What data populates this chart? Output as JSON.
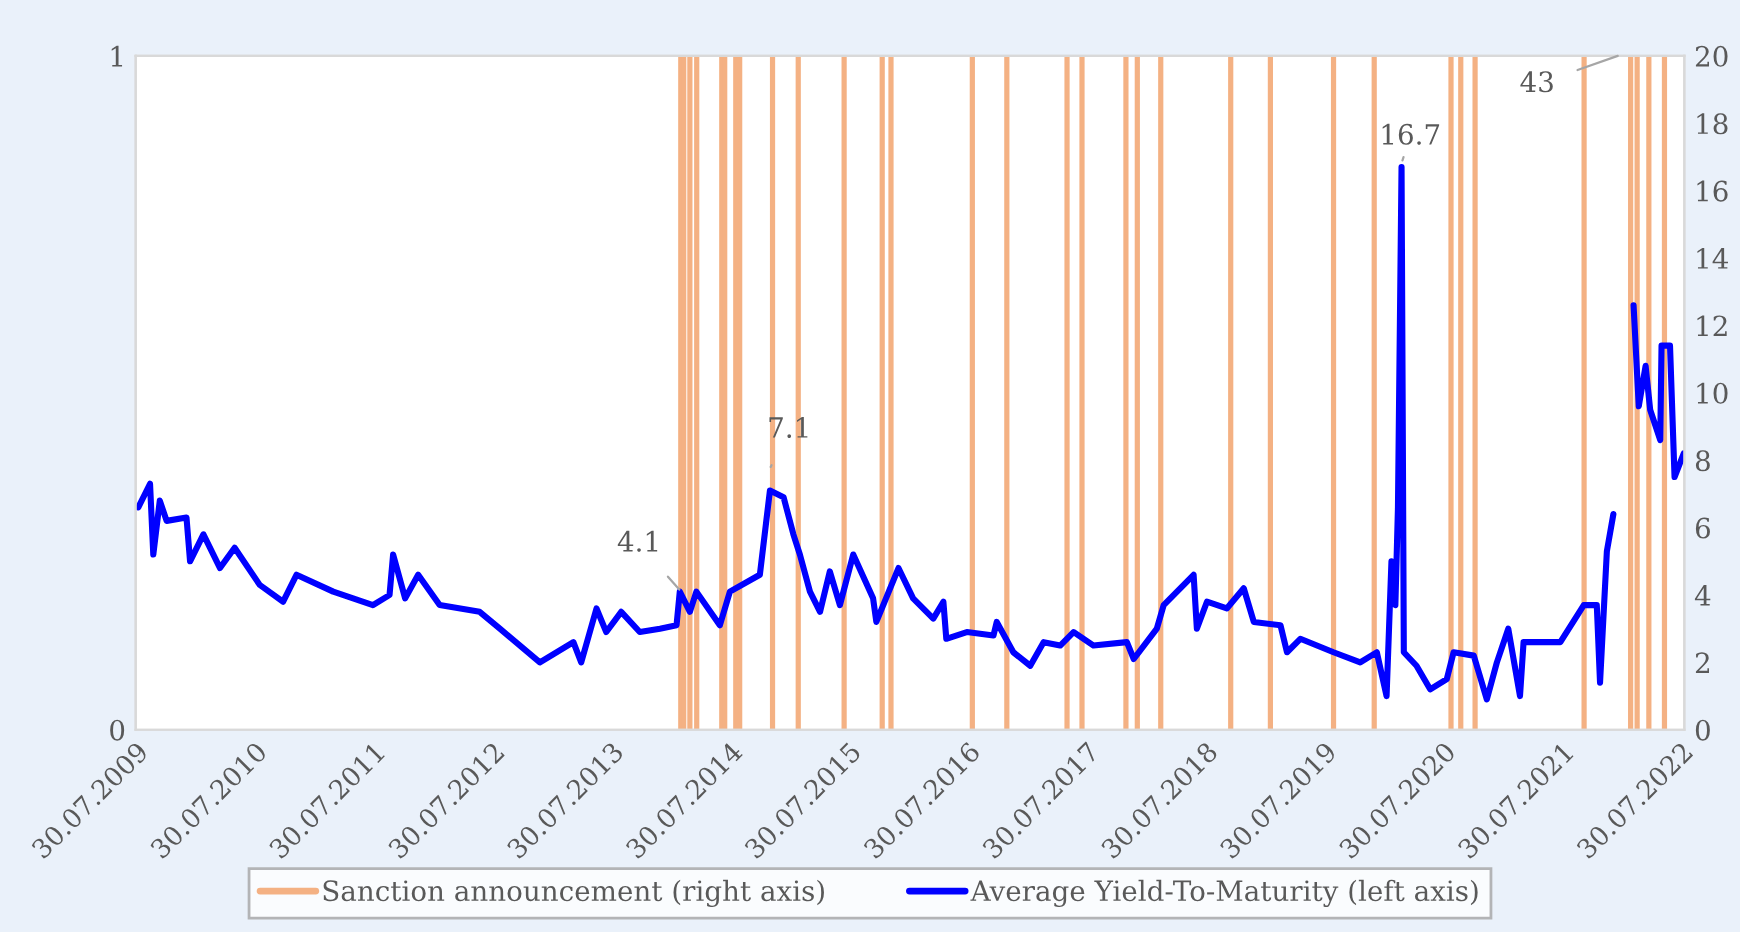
{
  "chart_data": {
    "type": "line",
    "series": [
      {
        "name": "Sanction announcement (right axis)",
        "type": "bar",
        "color": "#f4b183",
        "x": [
          "2014-03-01",
          "2014-03-10",
          "2014-03-29",
          "2014-04-19",
          "2014-07-05",
          "2014-07-14",
          "2014-08-17",
          "2014-08-29",
          "2014-12-08",
          "2015-02-25",
          "2015-07-16",
          "2015-11-10",
          "2015-12-07",
          "2016-08-13",
          "2016-11-27",
          "2017-05-31",
          "2017-07-16",
          "2017-11-28",
          "2018-01-02",
          "2018-03-15",
          "2018-10-16",
          "2019-02-15",
          "2019-08-28",
          "2019-12-31",
          "2020-08-23",
          "2020-09-22",
          "2020-11-05",
          "2021-10-06",
          "2022-02-26",
          "2022-03-18",
          "2022-04-23",
          "2022-06-10"
        ],
        "values": [
          1,
          1,
          1,
          1,
          1,
          1,
          1,
          1,
          1,
          1,
          1,
          1,
          1,
          1,
          1,
          1,
          1,
          1,
          1,
          1,
          1,
          1,
          1,
          1,
          1,
          1,
          1,
          1,
          1,
          1,
          1,
          1
        ]
      },
      {
        "name": "Average Yield-To-Maturity (left axis)",
        "axis": "y2",
        "color": "#0000ff",
        "x": [
          "2009-08-07",
          "2009-09-12",
          "2009-09-22",
          "2009-10-12",
          "2009-11-02",
          "2010-01-02",
          "2010-01-13",
          "2010-02-23",
          "2010-04-15",
          "2010-05-30",
          "2010-08-15",
          "2010-10-26",
          "2010-12-06",
          "2011-03-29",
          "2011-07-29",
          "2011-09-18",
          "2011-09-29",
          "2011-11-05",
          "2011-12-15",
          "2012-02-19",
          "2012-06-21",
          "2012-08-22",
          "2012-12-23",
          "2013-04-05",
          "2013-04-29",
          "2013-06-15",
          "2013-07-15",
          "2013-08-30",
          "2013-10-26",
          "2013-12-27",
          "2014-02-16",
          "2014-02-26",
          "2014-03-29",
          "2014-04-18",
          "2014-06-29",
          "2014-07-30",
          "2014-10-30",
          "2014-11-30",
          "2015-01-11",
          "2015-02-10",
          "2015-03-02",
          "2015-04-02",
          "2015-05-03",
          "2015-06-02",
          "2015-07-03",
          "2015-08-13",
          "2015-10-13",
          "2015-10-23",
          "2015-12-30",
          "2016-02-13",
          "2016-04-15",
          "2016-05-16",
          "2016-05-25",
          "2016-07-27",
          "2016-10-17",
          "2016-10-27",
          "2016-12-17",
          "2017-02-07",
          "2017-03-20",
          "2017-05-10",
          "2017-06-20",
          "2017-08-20",
          "2017-12-01",
          "2017-12-22",
          "2018-03-03",
          "2018-03-24",
          "2018-06-24",
          "2018-07-04",
          "2018-08-04",
          "2018-10-04",
          "2018-11-25",
          "2018-12-26",
          "2019-03-18",
          "2019-04-07",
          "2019-05-18",
          "2019-08-28",
          "2019-11-18",
          "2020-01-08",
          "2020-02-07",
          "2020-02-22",
          "2020-03-05",
          "2020-03-13",
          "2020-03-24",
          "2020-03-31",
          "2020-05-09",
          "2020-06-20",
          "2020-08-10",
          "2020-08-31",
          "2020-11-01",
          "2020-12-11",
          "2021-01-11",
          "2021-02-15",
          "2021-03-23",
          "2021-04-03",
          "2021-07-25",
          "2021-10-05",
          "2021-11-14",
          "2021-11-24",
          "2021-12-15",
          "2022-01-04",
          "2022-01-20",
          "2022-03-07",
          "2022-03-23",
          "2022-04-13",
          "2022-04-27",
          "2022-05-28",
          "2022-06-01",
          "2022-06-27",
          "2022-07-11",
          "2022-08-08"
        ],
        "values": [
          6.6,
          7.3,
          5.2,
          6.8,
          6.2,
          6.3,
          5.0,
          5.8,
          4.8,
          5.4,
          4.3,
          3.8,
          4.6,
          4.1,
          3.7,
          4.0,
          5.2,
          3.9,
          4.6,
          3.7,
          3.5,
          3.0,
          2.0,
          2.6,
          2.0,
          3.6,
          2.9,
          3.5,
          2.9,
          3.0,
          3.1,
          4.1,
          3.5,
          4.1,
          3.1,
          4.1,
          4.6,
          7.1,
          6.9,
          5.8,
          5.2,
          4.1,
          3.5,
          4.7,
          3.7,
          5.2,
          3.9,
          3.2,
          4.8,
          3.9,
          3.3,
          3.8,
          2.7,
          2.9,
          2.8,
          3.2,
          2.3,
          1.9,
          2.6,
          2.5,
          2.9,
          2.5,
          2.6,
          2.1,
          3.0,
          3.7,
          4.6,
          3.0,
          3.8,
          3.6,
          4.2,
          3.2,
          3.1,
          2.3,
          2.7,
          2.3,
          2.0,
          2.3,
          1.0,
          5.0,
          3.7,
          6.6,
          16.7,
          2.3,
          1.9,
          1.2,
          1.5,
          2.3,
          2.2,
          0.9,
          2.0,
          3.0,
          1.0,
          2.6,
          2.6,
          3.7,
          3.7,
          1.4,
          5.3,
          6.4,
          null,
          12.6,
          9.6,
          10.8,
          9.5,
          8.6,
          11.4,
          11.4,
          7.5,
          8.2
        ]
      }
    ],
    "xlim": [
      "2009-07-30",
      "2022-08-10"
    ],
    "xticks": [
      {
        "value": "2009-07-30",
        "label": "30.07.2009"
      },
      {
        "value": "2010-07-30",
        "label": "30.07.2010"
      },
      {
        "value": "2011-07-30",
        "label": "30.07.2011"
      },
      {
        "value": "2012-07-30",
        "label": "30.07.2012"
      },
      {
        "value": "2013-07-30",
        "label": "30.07.2013"
      },
      {
        "value": "2014-07-30",
        "label": "30.07.2014"
      },
      {
        "value": "2015-07-30",
        "label": "30.07.2015"
      },
      {
        "value": "2016-07-30",
        "label": "30.07.2016"
      },
      {
        "value": "2017-07-30",
        "label": "30.07.2017"
      },
      {
        "value": "2018-07-30",
        "label": "30.07.2018"
      },
      {
        "value": "2019-07-30",
        "label": "30.07.2019"
      },
      {
        "value": "2020-07-30",
        "label": "30.07.2020"
      },
      {
        "value": "2021-07-30",
        "label": "30.07.2021"
      },
      {
        "value": "2022-07-30",
        "label": "30.07.2022"
      }
    ],
    "ylim": [
      0,
      1
    ],
    "yticks": [
      0,
      1
    ],
    "y2lim": [
      0,
      20
    ],
    "y2ticks": [
      0,
      2,
      4,
      6,
      8,
      10,
      12,
      14,
      16,
      18,
      20
    ],
    "annotations": [
      "4.1",
      "7.1",
      "16.7",
      "43"
    ],
    "legend": "bottom",
    "grid": false,
    "line_style": "solid",
    "marker": "none"
  }
}
